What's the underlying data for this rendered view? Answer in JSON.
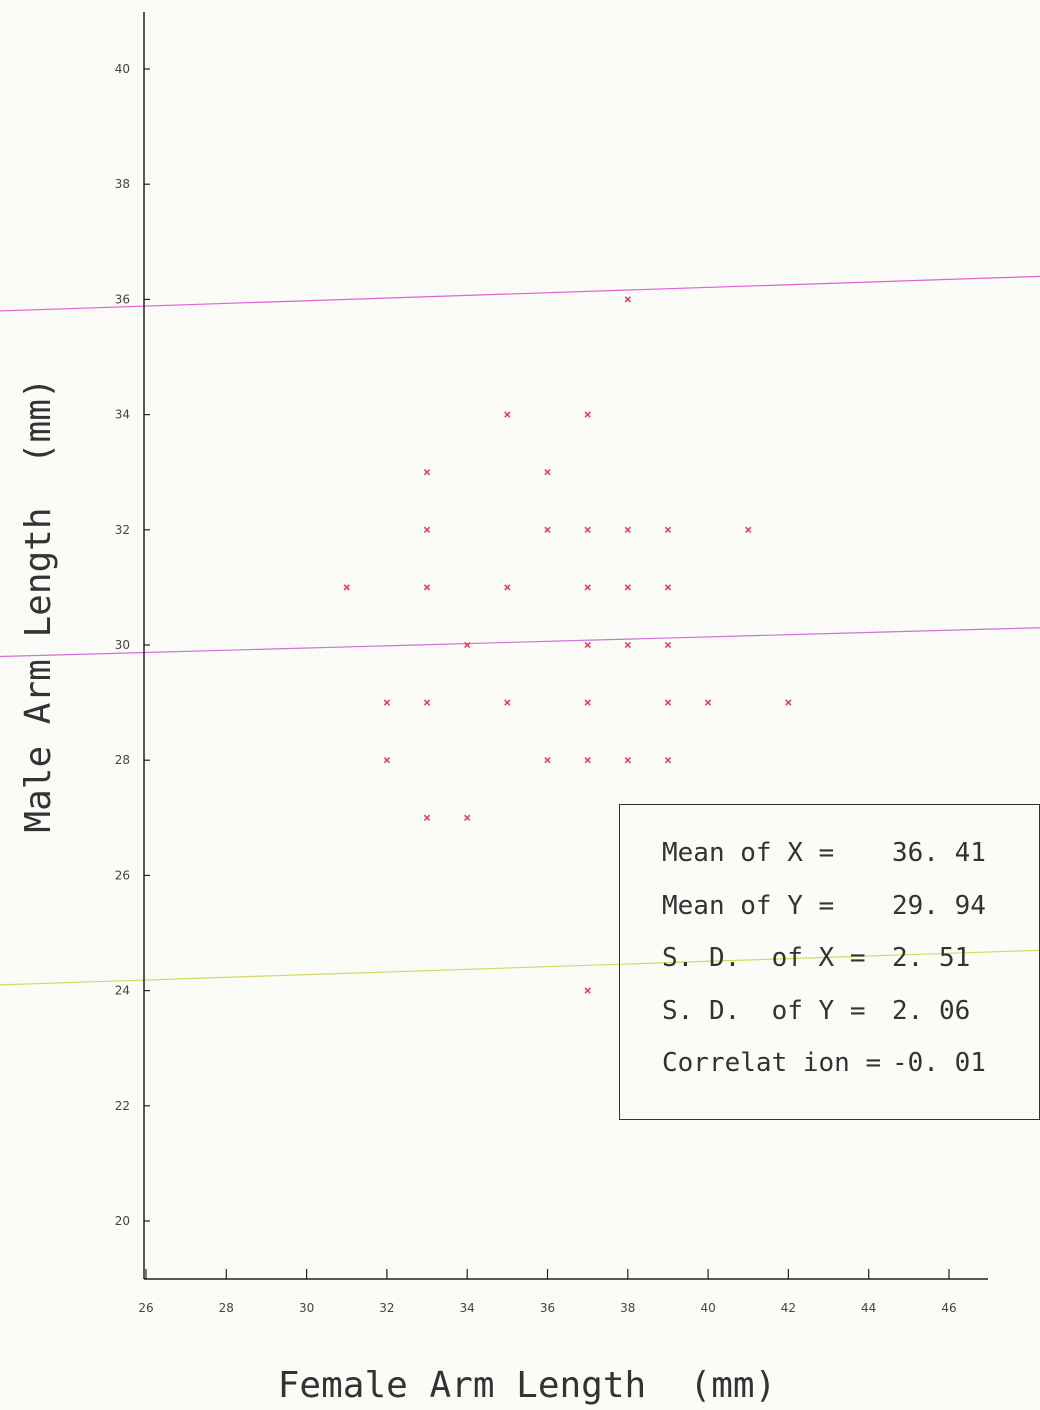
{
  "chart_data": {
    "type": "scatter",
    "xlabel": "Female Arm Length  (mm)",
    "ylabel": "Male Arm Length  (mm)",
    "xlim": [
      26,
      47
    ],
    "ylim": [
      19,
      42
    ],
    "xticks": [
      26,
      28,
      30,
      32,
      34,
      36,
      38,
      40,
      42,
      44,
      46
    ],
    "yticks": [
      20,
      22,
      24,
      26,
      28,
      30,
      32,
      34,
      36,
      38,
      40
    ],
    "marker_color": "#e0406a",
    "points": [
      {
        "x": 38,
        "y": 36
      },
      {
        "x": 35,
        "y": 34
      },
      {
        "x": 37,
        "y": 34
      },
      {
        "x": 33,
        "y": 33
      },
      {
        "x": 36,
        "y": 33
      },
      {
        "x": 33,
        "y": 32
      },
      {
        "x": 36,
        "y": 32
      },
      {
        "x": 37,
        "y": 32
      },
      {
        "x": 38,
        "y": 32
      },
      {
        "x": 39,
        "y": 32
      },
      {
        "x": 41,
        "y": 32
      },
      {
        "x": 31,
        "y": 31
      },
      {
        "x": 33,
        "y": 31
      },
      {
        "x": 35,
        "y": 31
      },
      {
        "x": 37,
        "y": 31
      },
      {
        "x": 38,
        "y": 31
      },
      {
        "x": 39,
        "y": 31
      },
      {
        "x": 34,
        "y": 30
      },
      {
        "x": 37,
        "y": 30
      },
      {
        "x": 38,
        "y": 30
      },
      {
        "x": 39,
        "y": 30
      },
      {
        "x": 32,
        "y": 29
      },
      {
        "x": 33,
        "y": 29
      },
      {
        "x": 35,
        "y": 29
      },
      {
        "x": 37,
        "y": 29
      },
      {
        "x": 39,
        "y": 29
      },
      {
        "x": 40,
        "y": 29
      },
      {
        "x": 42,
        "y": 29
      },
      {
        "x": 32,
        "y": 28
      },
      {
        "x": 36,
        "y": 28
      },
      {
        "x": 37,
        "y": 28
      },
      {
        "x": 38,
        "y": 28
      },
      {
        "x": 39,
        "y": 28
      },
      {
        "x": 33,
        "y": 27
      },
      {
        "x": 34,
        "y": 27
      },
      {
        "x": 37,
        "y": 24
      }
    ],
    "reference_lines": [
      {
        "color": "#e060d8",
        "y_left": 35.8,
        "y_right": 36.4
      },
      {
        "color": "#d070d8",
        "y_left": 29.8,
        "y_right": 30.3
      },
      {
        "color": "#d8d860",
        "y_left": 24.1,
        "y_right": 24.7
      }
    ]
  },
  "stats": [
    {
      "label": "Mean of X =",
      "value": "36. 41"
    },
    {
      "label": "Mean of Y =",
      "value": "29. 94"
    },
    {
      "label": "S. D.  of X =",
      "value": "2. 51"
    },
    {
      "label": "S. D.  of Y =",
      "value": "2. 06"
    },
    {
      "label": "Correlat ion =",
      "value": "-0. 01"
    }
  ]
}
